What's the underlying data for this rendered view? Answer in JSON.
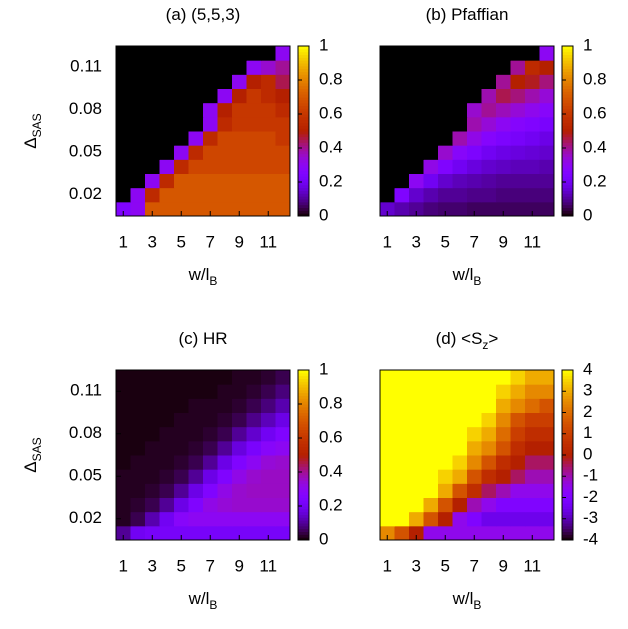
{
  "chart_data": [
    {
      "type": "heatmap",
      "title": [
        {
          "text": "(a) (5,5,3)"
        }
      ],
      "xlabel": [
        {
          "text": "w/l"
        },
        {
          "text": "B",
          "sub": true
        }
      ],
      "ylabel": [
        {
          "text": "Δ"
        },
        {
          "text": "SAS",
          "sub": true
        }
      ],
      "colormap": "gnuplot",
      "x": [
        1,
        2,
        3,
        4,
        5,
        6,
        7,
        8,
        9,
        10,
        11,
        12
      ],
      "y": [
        0.01,
        0.02,
        0.03,
        0.04,
        0.05,
        0.06,
        0.07,
        0.08,
        0.09,
        0.1,
        0.11,
        0.12
      ],
      "xlim": [
        0.5,
        12.5
      ],
      "ylim": [
        0.005,
        0.125
      ],
      "xticks": [
        1,
        3,
        5,
        7,
        9,
        11
      ],
      "yticks": [
        0.02,
        0.05,
        0.08,
        0.11
      ],
      "zlim": [
        0,
        1
      ],
      "zticks": [
        0,
        0.2,
        0.4,
        0.6,
        0.8,
        1
      ],
      "z": [
        [
          0.25,
          0.3,
          0.7,
          0.7,
          0.7,
          0.7,
          0.7,
          0.7,
          0.7,
          0.7,
          0.7,
          0.7
        ],
        [
          0,
          0.3,
          0.55,
          0.7,
          0.7,
          0.7,
          0.7,
          0.7,
          0.7,
          0.7,
          0.7,
          0.7
        ],
        [
          0,
          0,
          0.3,
          0.55,
          0.7,
          0.7,
          0.7,
          0.7,
          0.7,
          0.7,
          0.7,
          0.7
        ],
        [
          0,
          0,
          0,
          0.3,
          0.55,
          0.65,
          0.65,
          0.65,
          0.65,
          0.65,
          0.65,
          0.65
        ],
        [
          0,
          0,
          0,
          0,
          0.3,
          0.55,
          0.65,
          0.65,
          0.65,
          0.65,
          0.65,
          0.65
        ],
        [
          0,
          0,
          0,
          0,
          0,
          0.3,
          0.55,
          0.65,
          0.65,
          0.65,
          0.65,
          0.6
        ],
        [
          0,
          0,
          0,
          0,
          0,
          0,
          0.3,
          0.55,
          0.6,
          0.6,
          0.6,
          0.6
        ],
        [
          0,
          0,
          0,
          0,
          0,
          0,
          0.3,
          0.5,
          0.6,
          0.6,
          0.6,
          0.55
        ],
        [
          0,
          0,
          0,
          0,
          0,
          0,
          0,
          0.3,
          0.5,
          0.6,
          0.55,
          0.5
        ],
        [
          0,
          0,
          0,
          0,
          0,
          0,
          0,
          0,
          0.3,
          0.5,
          0.55,
          0.45
        ],
        [
          0,
          0,
          0,
          0,
          0,
          0,
          0,
          0,
          0,
          0.3,
          0.35,
          0.4
        ],
        [
          0,
          0,
          0,
          0,
          0,
          0,
          0,
          0,
          0,
          0,
          0,
          0.3
        ]
      ]
    },
    {
      "type": "heatmap",
      "title": [
        {
          "text": "(b) Pfaffian"
        }
      ],
      "xlabel": [
        {
          "text": "w/l"
        },
        {
          "text": "B",
          "sub": true
        }
      ],
      "colormap": "gnuplot",
      "x": [
        1,
        2,
        3,
        4,
        5,
        6,
        7,
        8,
        9,
        10,
        11,
        12
      ],
      "y": [
        0.01,
        0.02,
        0.03,
        0.04,
        0.05,
        0.06,
        0.07,
        0.08,
        0.09,
        0.1,
        0.11,
        0.12
      ],
      "xlim": [
        0.5,
        12.5
      ],
      "ylim": [
        0.005,
        0.125
      ],
      "xticks": [
        1,
        3,
        5,
        7,
        9,
        11
      ],
      "zlim": [
        0,
        1
      ],
      "zticks": [
        0,
        0.2,
        0.4,
        0.6,
        0.8,
        1
      ],
      "z": [
        [
          0.15,
          0.12,
          0.1,
          0.08,
          0.07,
          0.07,
          0.06,
          0.06,
          0.06,
          0.06,
          0.06,
          0.06
        ],
        [
          0,
          0.25,
          0.15,
          0.12,
          0.1,
          0.1,
          0.09,
          0.09,
          0.08,
          0.08,
          0.08,
          0.08
        ],
        [
          0,
          0,
          0.3,
          0.2,
          0.15,
          0.13,
          0.12,
          0.11,
          0.1,
          0.1,
          0.1,
          0.1
        ],
        [
          0,
          0,
          0,
          0.32,
          0.25,
          0.2,
          0.17,
          0.15,
          0.14,
          0.13,
          0.13,
          0.12
        ],
        [
          0,
          0,
          0,
          0,
          0.35,
          0.28,
          0.24,
          0.2,
          0.18,
          0.17,
          0.16,
          0.15
        ],
        [
          0,
          0,
          0,
          0,
          0,
          0.38,
          0.32,
          0.27,
          0.24,
          0.22,
          0.2,
          0.18
        ],
        [
          0,
          0,
          0,
          0,
          0,
          0,
          0.38,
          0.34,
          0.3,
          0.27,
          0.25,
          0.23
        ],
        [
          0,
          0,
          0,
          0,
          0,
          0,
          0.35,
          0.4,
          0.37,
          0.34,
          0.31,
          0.28
        ],
        [
          0,
          0,
          0,
          0,
          0,
          0,
          0,
          0.38,
          0.45,
          0.42,
          0.38,
          0.34
        ],
        [
          0,
          0,
          0,
          0,
          0,
          0,
          0,
          0,
          0.4,
          0.5,
          0.48,
          0.42
        ],
        [
          0,
          0,
          0,
          0,
          0,
          0,
          0,
          0,
          0,
          0.4,
          0.55,
          0.5
        ],
        [
          0,
          0,
          0,
          0,
          0,
          0,
          0,
          0,
          0,
          0,
          0,
          0.3
        ]
      ]
    },
    {
      "type": "heatmap",
      "title": [
        {
          "text": "(c) HR"
        }
      ],
      "xlabel": [
        {
          "text": "w/l"
        },
        {
          "text": "B",
          "sub": true
        }
      ],
      "ylabel": [
        {
          "text": "Δ"
        },
        {
          "text": "SAS",
          "sub": true
        }
      ],
      "colormap": "gnuplot",
      "x": [
        1,
        2,
        3,
        4,
        5,
        6,
        7,
        8,
        9,
        10,
        11,
        12
      ],
      "y": [
        0.01,
        0.02,
        0.03,
        0.04,
        0.05,
        0.06,
        0.07,
        0.08,
        0.09,
        0.1,
        0.11,
        0.12
      ],
      "xlim": [
        0.5,
        12.5
      ],
      "ylim": [
        0.005,
        0.125
      ],
      "xticks": [
        1,
        3,
        5,
        7,
        9,
        11
      ],
      "yticks": [
        0.02,
        0.05,
        0.08,
        0.11
      ],
      "zlim": [
        0,
        1
      ],
      "zticks": [
        0,
        0.2,
        0.4,
        0.6,
        0.8,
        1
      ],
      "z": [
        [
          0.1,
          0.2,
          0.22,
          0.22,
          0.22,
          0.22,
          0.22,
          0.22,
          0.22,
          0.22,
          0.22,
          0.22
        ],
        [
          0.02,
          0.05,
          0.12,
          0.2,
          0.28,
          0.3,
          0.3,
          0.3,
          0.3,
          0.3,
          0.3,
          0.3
        ],
        [
          0.02,
          0.03,
          0.05,
          0.1,
          0.18,
          0.25,
          0.32,
          0.34,
          0.35,
          0.35,
          0.35,
          0.35
        ],
        [
          0.02,
          0.02,
          0.03,
          0.05,
          0.1,
          0.18,
          0.25,
          0.32,
          0.35,
          0.36,
          0.36,
          0.36
        ],
        [
          0.02,
          0.02,
          0.02,
          0.03,
          0.05,
          0.1,
          0.18,
          0.25,
          0.32,
          0.35,
          0.36,
          0.36
        ],
        [
          0.01,
          0.02,
          0.02,
          0.02,
          0.03,
          0.05,
          0.1,
          0.18,
          0.25,
          0.3,
          0.34,
          0.35
        ],
        [
          0.01,
          0.01,
          0.02,
          0.02,
          0.02,
          0.03,
          0.05,
          0.1,
          0.17,
          0.23,
          0.28,
          0.3
        ],
        [
          0.01,
          0.01,
          0.01,
          0.02,
          0.02,
          0.02,
          0.03,
          0.05,
          0.1,
          0.15,
          0.2,
          0.25
        ],
        [
          0.01,
          0.01,
          0.01,
          0.01,
          0.02,
          0.02,
          0.02,
          0.03,
          0.05,
          0.09,
          0.13,
          0.18
        ],
        [
          0.01,
          0.01,
          0.01,
          0.01,
          0.01,
          0.02,
          0.02,
          0.02,
          0.03,
          0.05,
          0.08,
          0.12
        ],
        [
          0.01,
          0.01,
          0.01,
          0.01,
          0.01,
          0.01,
          0.01,
          0.02,
          0.02,
          0.03,
          0.05,
          0.08
        ],
        [
          0.01,
          0.01,
          0.01,
          0.01,
          0.01,
          0.01,
          0.01,
          0.01,
          0.02,
          0.02,
          0.03,
          0.05
        ]
      ]
    },
    {
      "type": "heatmap",
      "title": [
        {
          "text": "(d) <S"
        },
        {
          "text": "z",
          "sub": true
        },
        {
          "text": ">"
        }
      ],
      "xlabel": [
        {
          "text": "w/l"
        },
        {
          "text": "B",
          "sub": true
        }
      ],
      "colormap": "gnuplot",
      "x": [
        1,
        2,
        3,
        4,
        5,
        6,
        7,
        8,
        9,
        10,
        11,
        12
      ],
      "y": [
        0.01,
        0.02,
        0.03,
        0.04,
        0.05,
        0.06,
        0.07,
        0.08,
        0.09,
        0.1,
        0.11,
        0.12
      ],
      "xlim": [
        0.5,
        12.5
      ],
      "ylim": [
        0.005,
        0.125
      ],
      "xticks": [
        1,
        3,
        5,
        7,
        9,
        11
      ],
      "zlim": [
        -4,
        4
      ],
      "zticks": [
        -4,
        -3,
        -2,
        -1,
        0,
        1,
        2,
        3,
        4
      ],
      "z": [
        [
          2.5,
          1.5,
          0,
          -1.5,
          -1.5,
          -1.5,
          -1.5,
          -1.5,
          -1.5,
          -1.5,
          -1.5,
          -1.5
        ],
        [
          4,
          4,
          3,
          1.5,
          0,
          -1.5,
          -2,
          -2.5,
          -2.5,
          -2.5,
          -2.5,
          -2.5
        ],
        [
          4,
          4,
          4,
          3,
          1.5,
          0,
          -1,
          -1.5,
          -2,
          -2,
          -2,
          -2
        ],
        [
          4,
          4,
          4,
          4,
          3,
          1.5,
          0.5,
          -0.5,
          -1,
          -1.5,
          -1.5,
          -1.5
        ],
        [
          4,
          4,
          4,
          4,
          3.5,
          3,
          1.5,
          0.5,
          0,
          -0.5,
          -1,
          -1
        ],
        [
          4,
          4,
          4,
          4,
          4,
          3.5,
          2.5,
          1.5,
          0.5,
          0,
          -0.5,
          -0.5
        ],
        [
          4,
          4,
          4,
          4,
          4,
          4,
          3,
          2.5,
          1.5,
          0.5,
          0,
          0
        ],
        [
          4,
          4,
          4,
          4,
          4,
          4,
          3.5,
          3,
          2,
          1,
          0.5,
          0.5
        ],
        [
          4,
          4,
          4,
          4,
          4,
          4,
          4,
          3.5,
          2.5,
          1.5,
          1,
          1
        ],
        [
          4,
          4,
          4,
          4,
          4,
          4,
          4,
          4,
          3,
          2.5,
          2,
          1.5
        ],
        [
          4,
          4,
          4,
          4,
          4,
          4,
          4,
          4,
          3.5,
          3,
          2.5,
          2.5
        ],
        [
          4,
          4,
          4,
          4,
          4,
          4,
          4,
          4,
          4,
          3.5,
          3,
          3
        ]
      ]
    }
  ]
}
